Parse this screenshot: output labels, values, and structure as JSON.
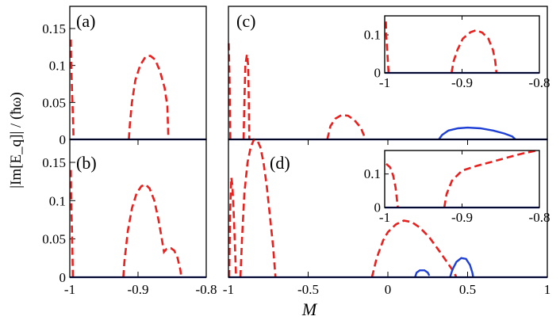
{
  "figure": {
    "ylabel": "|Im[E_q]| / (ħω)",
    "xlabel": "M"
  },
  "colors": {
    "red": "#e8201e",
    "blue": "#1d3fd6",
    "baseline": "#0a1a8c"
  },
  "chart_data": [
    {
      "id": "a",
      "label": "(a)",
      "type": "line",
      "xlim": [
        -1,
        -0.8
      ],
      "ylim": [
        0,
        0.18
      ],
      "xticks": [],
      "xticklabels": [],
      "yticks": [
        0,
        0.05,
        0.1,
        0.15
      ],
      "yticklabels": [
        "0",
        "0.05",
        "0.1",
        "0.15"
      ],
      "series": [
        {
          "name": "unstable-1",
          "style": "red-dashed",
          "points": [
            [
              -0.9985,
              0.135
            ],
            [
              -0.998,
              0.105
            ],
            [
              -0.9965,
              0.06
            ],
            [
              -0.995,
              0.02
            ],
            [
              -0.9945,
              0.0
            ]
          ]
        },
        {
          "name": "unstable-2",
          "style": "red-dashed",
          "points": [
            [
              -0.9135,
              0.0
            ],
            [
              -0.912,
              0.02
            ],
            [
              -0.909,
              0.05
            ],
            [
              -0.904,
              0.08
            ],
            [
              -0.897,
              0.1
            ],
            [
              -0.889,
              0.112
            ],
            [
              -0.882,
              0.113
            ],
            [
              -0.875,
              0.108
            ],
            [
              -0.868,
              0.093
            ],
            [
              -0.861,
              0.07
            ],
            [
              -0.857,
              0.045
            ],
            [
              -0.8555,
              0.0
            ]
          ]
        },
        {
          "name": "baseline",
          "style": "baseline",
          "points": [
            [
              -1,
              0
            ],
            [
              -0.8,
              0
            ]
          ]
        }
      ]
    },
    {
      "id": "b",
      "label": "(b)",
      "type": "line",
      "xlim": [
        -1,
        -0.8
      ],
      "ylim": [
        0,
        0.18
      ],
      "xticks": [
        -1,
        -0.9,
        -0.8
      ],
      "xticklabels": [
        "-1",
        "-0.9",
        "-0.8"
      ],
      "yticks": [
        0,
        0.05,
        0.1,
        0.15
      ],
      "yticklabels": [
        "0",
        "0.05",
        "0.1",
        "0.15"
      ],
      "series": [
        {
          "name": "unstable-1",
          "style": "red-dashed",
          "points": [
            [
              -0.9985,
              0.14
            ],
            [
              -0.998,
              0.1
            ],
            [
              -0.9968,
              0.06
            ],
            [
              -0.9955,
              0.0
            ]
          ]
        },
        {
          "name": "unstable-2",
          "style": "red-dashed",
          "points": [
            [
              -0.9215,
              0.0
            ],
            [
              -0.92,
              0.02
            ],
            [
              -0.915,
              0.06
            ],
            [
              -0.909,
              0.09
            ],
            [
              -0.902,
              0.11
            ],
            [
              -0.895,
              0.119
            ],
            [
              -0.889,
              0.121
            ],
            [
              -0.883,
              0.116
            ],
            [
              -0.876,
              0.1
            ],
            [
              -0.87,
              0.075
            ],
            [
              -0.866,
              0.055
            ],
            [
              -0.862,
              0.033
            ],
            [
              -0.858,
              0.037
            ],
            [
              -0.852,
              0.038
            ],
            [
              -0.847,
              0.035
            ],
            [
              -0.842,
              0.025
            ],
            [
              -0.838,
              0.01
            ],
            [
              -0.8365,
              0.0
            ]
          ]
        },
        {
          "name": "baseline",
          "style": "baseline",
          "points": [
            [
              -1,
              0
            ],
            [
              -0.8,
              0
            ]
          ]
        }
      ]
    },
    {
      "id": "c",
      "label": "(c)",
      "type": "line",
      "xlim": [
        -1,
        1
      ],
      "ylim": [
        0,
        0.18
      ],
      "xticks": [],
      "xticklabels": [],
      "yticks": [],
      "yticklabels": [],
      "series": [
        {
          "name": "unstable-1",
          "style": "red-dashed",
          "points": [
            [
              -0.998,
              0.13
            ],
            [
              -0.993,
              0.08
            ],
            [
              -0.988,
              0.0
            ]
          ]
        },
        {
          "name": "unstable-2",
          "style": "red-dashed",
          "points": [
            [
              -0.905,
              0.0
            ],
            [
              -0.9,
              0.05
            ],
            [
              -0.894,
              0.1
            ],
            [
              -0.884,
              0.115
            ],
            [
              -0.876,
              0.1
            ],
            [
              -0.872,
              0.05
            ],
            [
              -0.869,
              0.0
            ]
          ]
        },
        {
          "name": "unstable-3",
          "style": "red-dashed",
          "points": [
            [
              -0.38,
              0.0
            ],
            [
              -0.36,
              0.018
            ],
            [
              -0.33,
              0.028
            ],
            [
              -0.29,
              0.033
            ],
            [
              -0.25,
              0.032
            ],
            [
              -0.21,
              0.026
            ],
            [
              -0.17,
              0.016
            ],
            [
              -0.14,
              0.0
            ]
          ]
        },
        {
          "name": "stable-band",
          "style": "blue-solid",
          "points": [
            [
              0.32,
              0.0
            ],
            [
              0.34,
              0.006
            ],
            [
              0.38,
              0.012
            ],
            [
              0.44,
              0.015
            ],
            [
              0.5,
              0.016
            ],
            [
              0.58,
              0.015
            ],
            [
              0.66,
              0.012
            ],
            [
              0.73,
              0.008
            ],
            [
              0.78,
              0.004
            ],
            [
              0.8,
              0.0
            ]
          ]
        },
        {
          "name": "baseline",
          "style": "baseline",
          "points": [
            [
              -1,
              0
            ],
            [
              1,
              0
            ]
          ]
        }
      ],
      "inset": {
        "xlim": [
          -1,
          -0.8
        ],
        "ylim": [
          0,
          0.15
        ],
        "xticks": [
          -1,
          -0.9,
          -0.8
        ],
        "xticklabels": [
          "-1",
          "-0.9",
          "-0.8"
        ],
        "yticks": [
          0,
          0.1
        ],
        "yticklabels": [
          "0",
          "0.1"
        ],
        "series": [
          {
            "name": "unstable-1",
            "style": "red-dashed",
            "points": [
              [
                -0.9985,
                0.135
              ],
              [
                -0.998,
                0.1
              ],
              [
                -0.9965,
                0.05
              ],
              [
                -0.995,
                0.0
              ]
            ]
          },
          {
            "name": "unstable-2",
            "style": "red-dashed",
            "points": [
              [
                -0.9135,
                0.0
              ],
              [
                -0.911,
                0.03
              ],
              [
                -0.906,
                0.06
              ],
              [
                -0.899,
                0.09
              ],
              [
                -0.889,
                0.107
              ],
              [
                -0.882,
                0.112
              ],
              [
                -0.874,
                0.106
              ],
              [
                -0.866,
                0.09
              ],
              [
                -0.86,
                0.06
              ],
              [
                -0.857,
                0.03
              ],
              [
                -0.8555,
                0.0
              ]
            ]
          },
          {
            "name": "baseline",
            "style": "baseline",
            "points": [
              [
                -1,
                0
              ],
              [
                -0.8,
                0
              ]
            ]
          }
        ]
      }
    },
    {
      "id": "d",
      "label": "(d)",
      "type": "line",
      "xlim": [
        -1,
        1
      ],
      "ylim": [
        0,
        0.18
      ],
      "xticks": [
        -1,
        -0.5,
        0,
        0.5,
        1
      ],
      "xticklabels": [
        "-1",
        "-0.5",
        "0",
        "0.5",
        "1"
      ],
      "yticks": [],
      "yticklabels": [],
      "series": [
        {
          "name": "unstable-1",
          "style": "red-dashed",
          "points": [
            [
              -0.995,
              0.0
            ],
            [
              -0.99,
              0.08
            ],
            [
              -0.982,
              0.13
            ],
            [
              -0.975,
              0.12
            ],
            [
              -0.965,
              0.075
            ],
            [
              -0.952,
              0.0
            ]
          ]
        },
        {
          "name": "unstable-2",
          "style": "red-dashed",
          "points": [
            [
              -0.925,
              0.0
            ],
            [
              -0.915,
              0.05
            ],
            [
              -0.9,
              0.11
            ],
            [
              -0.88,
              0.15
            ],
            [
              -0.86,
              0.17
            ],
            [
              -0.84,
              0.18
            ],
            [
              -0.82,
              0.179
            ],
            [
              -0.8,
              0.17
            ],
            [
              -0.78,
              0.15
            ],
            [
              -0.76,
              0.12
            ],
            [
              -0.74,
              0.08
            ],
            [
              -0.72,
              0.04
            ],
            [
              -0.705,
              0.0
            ]
          ]
        },
        {
          "name": "unstable-3",
          "style": "red-dashed",
          "points": [
            [
              -0.1,
              0.0
            ],
            [
              -0.07,
              0.025
            ],
            [
              -0.03,
              0.048
            ],
            [
              0.0,
              0.059
            ],
            [
              0.05,
              0.069
            ],
            [
              0.1,
              0.074
            ],
            [
              0.15,
              0.072
            ],
            [
              0.2,
              0.065
            ],
            [
              0.26,
              0.052
            ],
            [
              0.32,
              0.035
            ],
            [
              0.37,
              0.02
            ],
            [
              0.41,
              0.008
            ],
            [
              0.43,
              0.0
            ]
          ]
        },
        {
          "name": "stable-1",
          "style": "blue-solid",
          "points": [
            [
              0.17,
              0.0
            ],
            [
              0.18,
              0.006
            ],
            [
              0.2,
              0.009
            ],
            [
              0.23,
              0.009
            ],
            [
              0.25,
              0.006
            ],
            [
              0.26,
              0.002
            ]
          ]
        },
        {
          "name": "stable-2",
          "style": "blue-solid",
          "points": [
            [
              0.39,
              0.0
            ],
            [
              0.405,
              0.01
            ],
            [
              0.43,
              0.02
            ],
            [
              0.46,
              0.025
            ],
            [
              0.49,
              0.024
            ],
            [
              0.515,
              0.016
            ],
            [
              0.53,
              0.006
            ],
            [
              0.535,
              0.0
            ]
          ]
        },
        {
          "name": "baseline",
          "style": "baseline",
          "points": [
            [
              -1,
              0
            ],
            [
              1,
              0
            ]
          ]
        }
      ],
      "inset": {
        "xlim": [
          -1,
          -0.8
        ],
        "ylim": [
          0,
          0.17
        ],
        "xticks": [
          -1,
          -0.9,
          -0.8
        ],
        "xticklabels": [
          "-1",
          "-0.9",
          "-0.8"
        ],
        "yticks": [
          0,
          0.1
        ],
        "yticklabels": [
          "0",
          "0.1"
        ],
        "series": [
          {
            "name": "unstable-1",
            "style": "red-dashed",
            "points": [
              [
                -0.998,
                0.13
              ],
              [
                -0.993,
                0.12
              ],
              [
                -0.989,
                0.095
              ],
              [
                -0.986,
                0.06
              ],
              [
                -0.984,
                0.02
              ],
              [
                -0.983,
                0.0
              ]
            ]
          },
          {
            "name": "unstable-2",
            "style": "red-dashed",
            "points": [
              [
                -0.923,
                0.0
              ],
              [
                -0.92,
                0.04
              ],
              [
                -0.913,
                0.08
              ],
              [
                -0.9,
                0.11
              ],
              [
                -0.88,
                0.125
              ],
              [
                -0.86,
                0.137
              ],
              [
                -0.84,
                0.15
              ],
              [
                -0.82,
                0.162
              ],
              [
                -0.805,
                0.169
              ],
              [
                -0.8,
                0.167
              ]
            ]
          },
          {
            "name": "baseline",
            "style": "baseline",
            "points": [
              [
                -1,
                0
              ],
              [
                -0.8,
                0
              ]
            ]
          }
        ]
      }
    }
  ]
}
